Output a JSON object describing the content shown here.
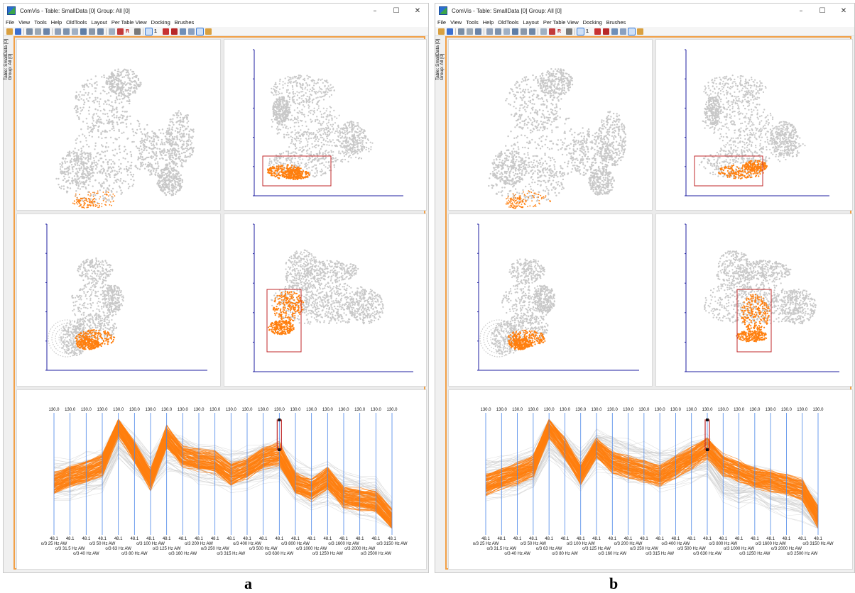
{
  "windows": [
    {
      "id": "a",
      "title": "ComVis -  Table: SmallData [0] Group: All [0]",
      "side_tab": {
        "line1": "Table: SmallData [0]",
        "line2": "Group: All [0]"
      },
      "caption": "a"
    },
    {
      "id": "b",
      "title": "ComVis -  Table: SmallData [0] Group: All [0]",
      "side_tab": {
        "line1": "Table: SmallData [0]",
        "line2": "Group: All [0]"
      },
      "caption": "b"
    }
  ],
  "window_controls": {
    "minimize": "–",
    "maximize": "☐",
    "close": "✕"
  },
  "menu": [
    "File",
    "View",
    "Tools",
    "Help",
    "OldTools",
    "Layout",
    "Per Table View",
    "Docking",
    "Brushes"
  ],
  "toolbar": {
    "r_label": "R",
    "one_label": "1"
  },
  "colors": {
    "highlight": "#ff7f0e",
    "context": "#c8c8c8",
    "axis": "#1f1fa0",
    "brush": "#c0292b",
    "border": "#f2a046",
    "pc_axis": "#4a86e8"
  },
  "parallel_coordinates": {
    "axis_top_label": "130.0",
    "axis_bottom_label": "48.1",
    "axes": [
      "o/3 25 Hz AW",
      "o/3 31.5 Hz AW",
      "o/3 40 Hz AW",
      "o/3 50 Hz AW",
      "o/3 63 Hz AW",
      "o/3 80 Hz AW",
      "o/3 100 Hz AW",
      "o/3 125 Hz AW",
      "o/3 160 Hz AW",
      "o/3 200 Hz AW",
      "o/3 250 Hz AW",
      "o/3 315 Hz AW",
      "o/3 400 Hz AW",
      "o/3 500 Hz AW",
      "o/3 630 Hz AW",
      "o/3 800 Hz AW",
      "o/3 1000 Hz AW",
      "o/3 1250 Hz AW",
      "o/3 1600 Hz AW",
      "o/3 2000 Hz AW",
      "o/3 2500 Hz AW",
      "o/3 3150 Hz AW"
    ],
    "brushed_axis": "o/3 630 Hz AW",
    "selection_a": [
      0.42,
      0.48,
      0.52,
      0.58,
      0.93,
      0.7,
      0.45,
      0.83,
      0.66,
      0.62,
      0.6,
      0.5,
      0.55,
      0.64,
      0.68,
      0.42,
      0.36,
      0.46,
      0.3,
      0.28,
      0.26,
      0.1
    ],
    "selection_b": [
      0.4,
      0.46,
      0.5,
      0.56,
      0.91,
      0.72,
      0.5,
      0.73,
      0.6,
      0.56,
      0.52,
      0.48,
      0.56,
      0.64,
      0.73,
      0.58,
      0.52,
      0.46,
      0.44,
      0.4,
      0.36,
      0.12
    ],
    "context_profile": [
      0.45,
      0.46,
      0.5,
      0.54,
      0.82,
      0.68,
      0.52,
      0.72,
      0.66,
      0.6,
      0.58,
      0.54,
      0.56,
      0.62,
      0.64,
      0.44,
      0.38,
      0.42,
      0.34,
      0.3,
      0.28,
      0.12
    ]
  }
}
